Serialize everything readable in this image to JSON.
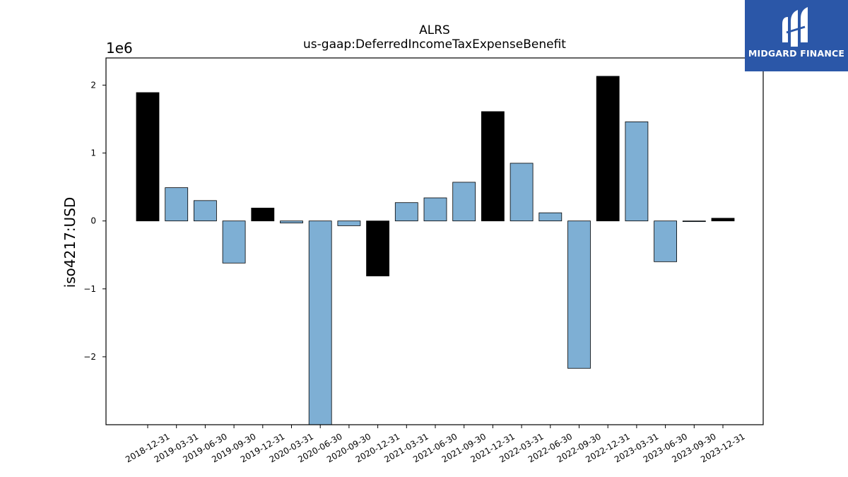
{
  "logo": {
    "text": "MIDGARD FINANCE",
    "background": "#2b57a8"
  },
  "chart_data": {
    "type": "bar",
    "title": "ALRS",
    "subtitle": "us-gaap:DeferredIncomeTaxExpenseBenefit",
    "ylabel": "iso4217:USD",
    "xlabel": "",
    "offset_text": "1e6",
    "ylim": [
      -3000000,
      2400000
    ],
    "yticks": [
      {
        "value": 2000000,
        "label": "2"
      },
      {
        "value": 1000000,
        "label": "1"
      },
      {
        "value": 0,
        "label": "0"
      },
      {
        "value": -1000000,
        "label": "−1"
      },
      {
        "value": -2000000,
        "label": "−2"
      }
    ],
    "grid": false,
    "categories": [
      "2018-12-31",
      "2019-03-31",
      "2019-06-30",
      "2019-09-30",
      "2019-12-31",
      "2020-03-31",
      "2020-06-30",
      "2020-09-30",
      "2020-12-31",
      "2021-03-31",
      "2021-06-30",
      "2021-09-30",
      "2021-12-31",
      "2022-03-31",
      "2022-06-30",
      "2022-09-30",
      "2022-12-31",
      "2023-03-31",
      "2023-06-30",
      "2023-09-30",
      "2023-12-31"
    ],
    "values": [
      1890000,
      490000,
      300000,
      -620000,
      190000,
      -30000,
      -3100000,
      -70000,
      -810000,
      270000,
      340000,
      570000,
      1610000,
      850000,
      120000,
      -2170000,
      2130000,
      1460000,
      -600000,
      -10000,
      40000
    ],
    "year_end": [
      true,
      false,
      false,
      false,
      true,
      false,
      false,
      false,
      true,
      false,
      false,
      false,
      true,
      false,
      false,
      false,
      true,
      false,
      false,
      false,
      true
    ],
    "colors": {
      "year_end": "#000000",
      "quarter": "#7eafd4",
      "edge": "#000000"
    }
  }
}
